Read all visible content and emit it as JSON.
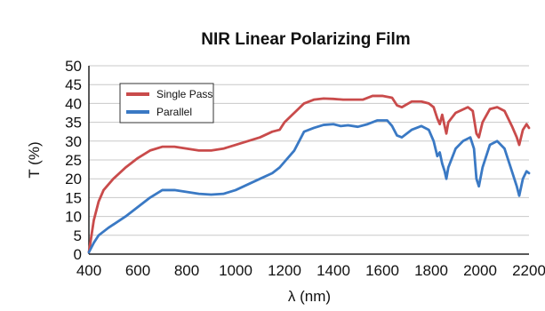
{
  "chart_data": {
    "type": "line",
    "title": "NIR Linear Polarizing Film",
    "xlabel": "λ (nm)",
    "ylabel": "T (%)",
    "xlim": [
      400,
      2200
    ],
    "ylim": [
      0,
      50
    ],
    "xticks": [
      "400",
      "600",
      "800",
      "1000",
      "1200",
      "1400",
      "1600",
      "1800",
      "2000",
      "2200"
    ],
    "yticks": [
      "0",
      "5",
      "10",
      "15",
      "20",
      "25",
      "30",
      "35",
      "40",
      "45",
      "50"
    ],
    "grid": "horizontal",
    "legend_position": "top-left",
    "series": [
      {
        "name": "Single Pass",
        "color": "#c94b4b",
        "points": [
          [
            400,
            0.5
          ],
          [
            420,
            9
          ],
          [
            440,
            14
          ],
          [
            460,
            17
          ],
          [
            500,
            20
          ],
          [
            550,
            23
          ],
          [
            600,
            25.5
          ],
          [
            650,
            27.5
          ],
          [
            700,
            28.5
          ],
          [
            750,
            28.5
          ],
          [
            800,
            28
          ],
          [
            850,
            27.5
          ],
          [
            900,
            27.5
          ],
          [
            950,
            28
          ],
          [
            1000,
            29
          ],
          [
            1050,
            30
          ],
          [
            1100,
            31
          ],
          [
            1150,
            32.5
          ],
          [
            1180,
            33
          ],
          [
            1200,
            35
          ],
          [
            1240,
            37.5
          ],
          [
            1280,
            40
          ],
          [
            1320,
            41
          ],
          [
            1360,
            41.3
          ],
          [
            1400,
            41.2
          ],
          [
            1440,
            41
          ],
          [
            1480,
            41
          ],
          [
            1520,
            41
          ],
          [
            1560,
            42
          ],
          [
            1600,
            42
          ],
          [
            1640,
            41.5
          ],
          [
            1660,
            39.5
          ],
          [
            1680,
            39
          ],
          [
            1720,
            40.5
          ],
          [
            1760,
            40.5
          ],
          [
            1790,
            40
          ],
          [
            1810,
            39
          ],
          [
            1825,
            36
          ],
          [
            1835,
            34.5
          ],
          [
            1845,
            37
          ],
          [
            1855,
            34
          ],
          [
            1862,
            32
          ],
          [
            1870,
            35
          ],
          [
            1900,
            37.5
          ],
          [
            1950,
            39
          ],
          [
            1970,
            38
          ],
          [
            1985,
            32
          ],
          [
            1995,
            31
          ],
          [
            2010,
            35
          ],
          [
            2040,
            38.5
          ],
          [
            2070,
            39
          ],
          [
            2100,
            38
          ],
          [
            2130,
            34
          ],
          [
            2150,
            31
          ],
          [
            2160,
            29
          ],
          [
            2175,
            33
          ],
          [
            2190,
            34.5
          ],
          [
            2200,
            33.5
          ]
        ]
      },
      {
        "name": "Parallel",
        "color": "#3a79c4",
        "points": [
          [
            400,
            0.5
          ],
          [
            420,
            3
          ],
          [
            440,
            5
          ],
          [
            480,
            7
          ],
          [
            550,
            10
          ],
          [
            600,
            12.5
          ],
          [
            650,
            15
          ],
          [
            700,
            17
          ],
          [
            750,
            17
          ],
          [
            800,
            16.5
          ],
          [
            850,
            16
          ],
          [
            900,
            15.8
          ],
          [
            950,
            16
          ],
          [
            1000,
            17
          ],
          [
            1050,
            18.5
          ],
          [
            1100,
            20
          ],
          [
            1150,
            21.5
          ],
          [
            1180,
            23
          ],
          [
            1200,
            24.5
          ],
          [
            1240,
            27.5
          ],
          [
            1260,
            30
          ],
          [
            1280,
            32.5
          ],
          [
            1320,
            33.5
          ],
          [
            1360,
            34.3
          ],
          [
            1400,
            34.5
          ],
          [
            1430,
            34
          ],
          [
            1460,
            34.2
          ],
          [
            1500,
            33.8
          ],
          [
            1540,
            34.5
          ],
          [
            1580,
            35.5
          ],
          [
            1620,
            35.5
          ],
          [
            1640,
            34
          ],
          [
            1660,
            31.5
          ],
          [
            1680,
            31
          ],
          [
            1720,
            33
          ],
          [
            1760,
            34
          ],
          [
            1790,
            33
          ],
          [
            1810,
            30
          ],
          [
            1825,
            26
          ],
          [
            1835,
            27
          ],
          [
            1845,
            24
          ],
          [
            1855,
            22
          ],
          [
            1862,
            20
          ],
          [
            1870,
            23
          ],
          [
            1900,
            28
          ],
          [
            1930,
            30
          ],
          [
            1960,
            31
          ],
          [
            1975,
            28
          ],
          [
            1985,
            20
          ],
          [
            1995,
            18
          ],
          [
            2010,
            23
          ],
          [
            2040,
            29
          ],
          [
            2070,
            30
          ],
          [
            2100,
            28
          ],
          [
            2130,
            22
          ],
          [
            2150,
            18
          ],
          [
            2160,
            15.5
          ],
          [
            2175,
            20
          ],
          [
            2190,
            22
          ],
          [
            2200,
            21.5
          ]
        ]
      }
    ]
  }
}
